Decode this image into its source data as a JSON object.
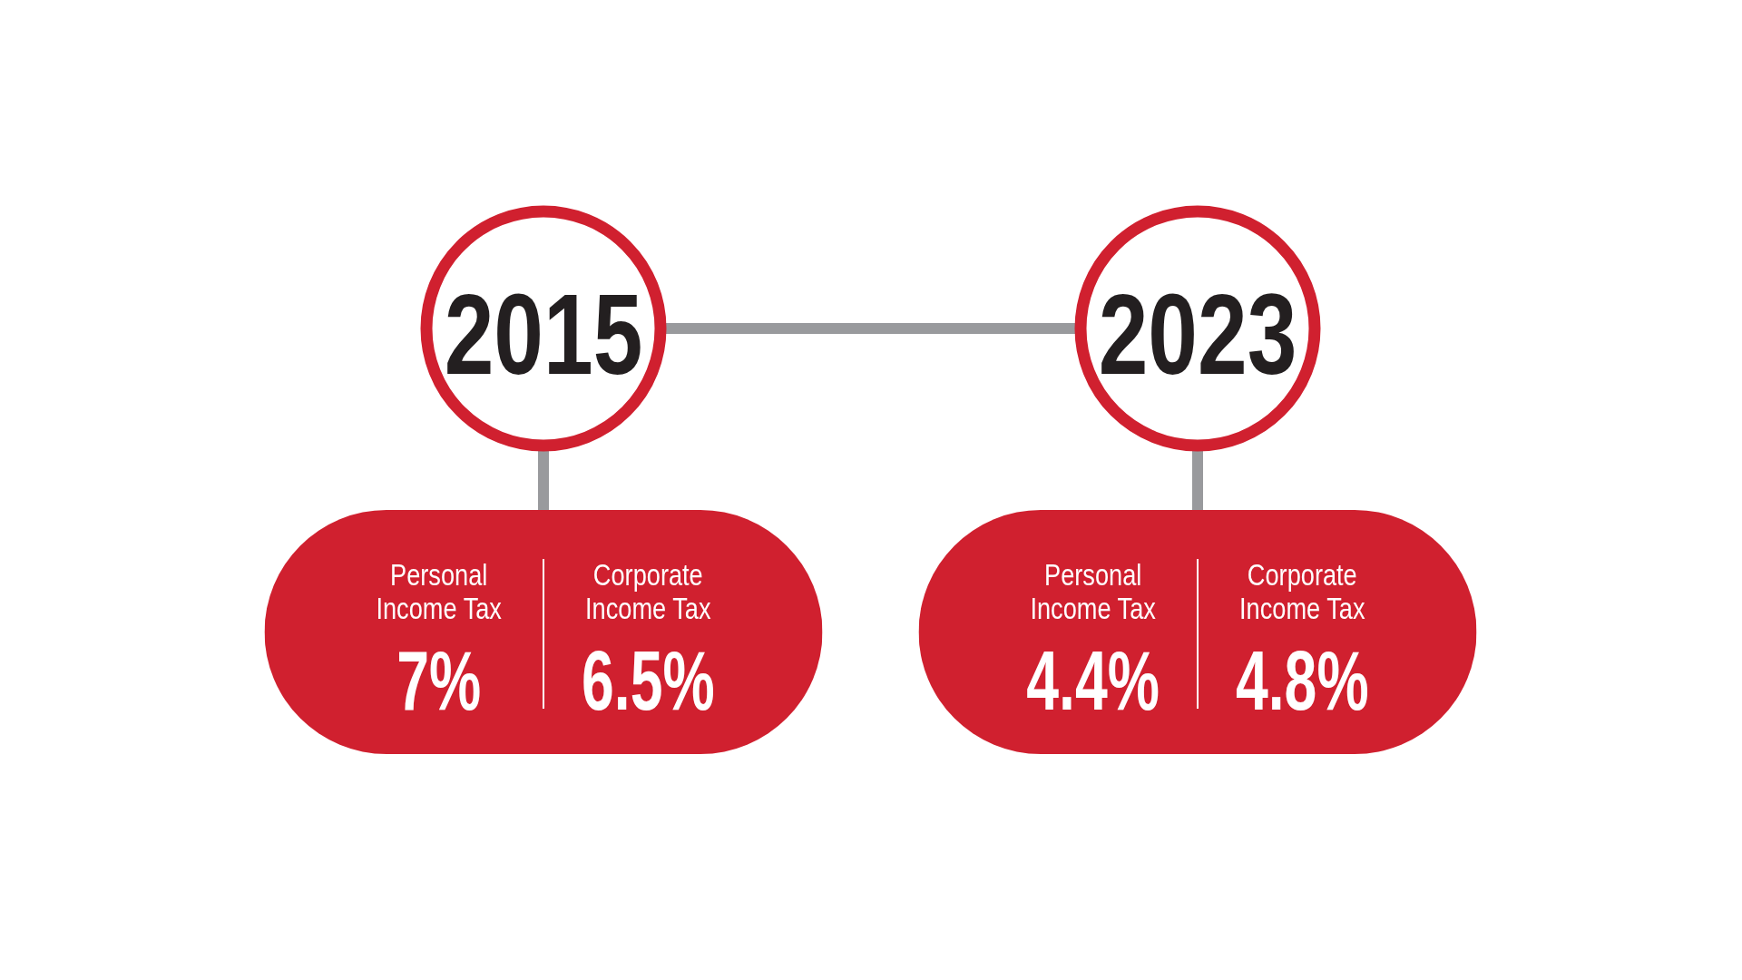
{
  "chart_data": {
    "type": "other",
    "categories": [
      "2015",
      "2023"
    ],
    "series": [
      {
        "name": "Personal Income Tax",
        "color": "#d0202f",
        "values": [
          7,
          4.4
        ],
        "value_labels": [
          "7%",
          "4.4%"
        ]
      },
      {
        "name": "Corporate Income Tax",
        "color": "#d0202f",
        "values": [
          6.5,
          4.8
        ],
        "value_labels": [
          "6.5%",
          "4.8%"
        ]
      }
    ]
  }
}
